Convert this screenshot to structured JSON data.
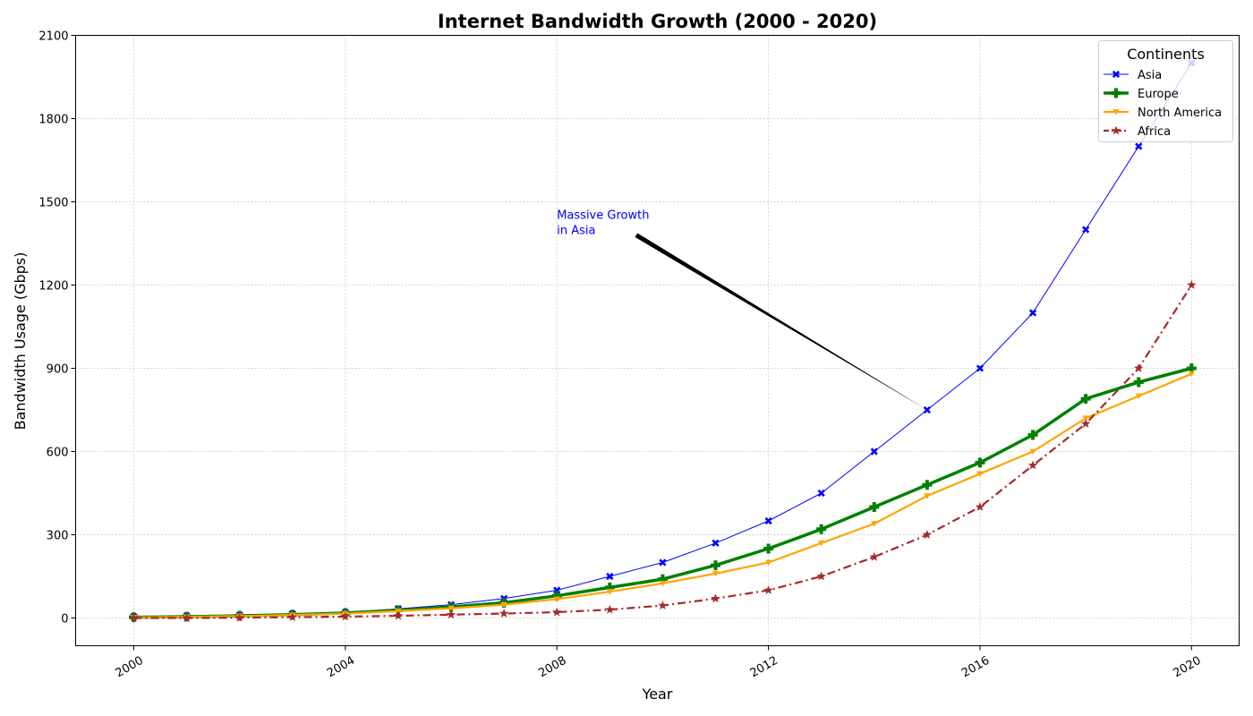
{
  "chart_data": {
    "type": "line",
    "title": "Internet Bandwidth Growth (2000 - 2020)",
    "xlabel": "Year",
    "ylabel": "Bandwidth Usage (Gbps)",
    "xlim": [
      1998.9,
      2020.9
    ],
    "ylim": [
      -100,
      2100
    ],
    "xticks": [
      2000,
      2004,
      2008,
      2012,
      2016,
      2020
    ],
    "yticks": [
      0,
      300,
      600,
      900,
      1200,
      1500,
      1800,
      2100
    ],
    "grid": true,
    "legend": {
      "title": "Continents",
      "placement": "top-right"
    },
    "x": [
      2000,
      2001,
      2002,
      2003,
      2004,
      2005,
      2006,
      2007,
      2008,
      2009,
      2010,
      2011,
      2012,
      2013,
      2014,
      2015,
      2016,
      2017,
      2018,
      2019,
      2020
    ],
    "series": [
      {
        "name": "Asia",
        "color": "#0000ff",
        "line": "solid",
        "marker": "x",
        "values": [
          5,
          7,
          10,
          15,
          20,
          33,
          48,
          70,
          100,
          150,
          200,
          270,
          350,
          450,
          600,
          750,
          900,
          1100,
          1400,
          1700,
          2000
        ]
      },
      {
        "name": "Europe",
        "color": "#008000",
        "line": "solid",
        "marker": "plus",
        "values": [
          3,
          5,
          8,
          12,
          18,
          28,
          40,
          55,
          80,
          110,
          140,
          190,
          250,
          320,
          400,
          480,
          560,
          660,
          790,
          850,
          900
        ]
      },
      {
        "name": "North America",
        "color": "#ffa500",
        "line": "solid",
        "marker": "triangle-down",
        "values": [
          2,
          4,
          7,
          11,
          16,
          25,
          35,
          48,
          68,
          95,
          125,
          160,
          200,
          270,
          340,
          440,
          520,
          600,
          720,
          800,
          880
        ]
      },
      {
        "name": "Africa",
        "color": "#a52a2a",
        "line": "dashdot",
        "marker": "star",
        "values": [
          0,
          0,
          1,
          3,
          5,
          8,
          12,
          16,
          21,
          30,
          45,
          70,
          100,
          150,
          220,
          300,
          400,
          550,
          700,
          900,
          1200
        ]
      }
    ],
    "annotations": [
      {
        "text_lines": [
          "Massive Growth",
          "in Asia"
        ],
        "color": "#0000ff",
        "text_x": 2008,
        "text_y": 1400,
        "arrow_to_x": 2015,
        "arrow_to_y": 750
      }
    ]
  }
}
